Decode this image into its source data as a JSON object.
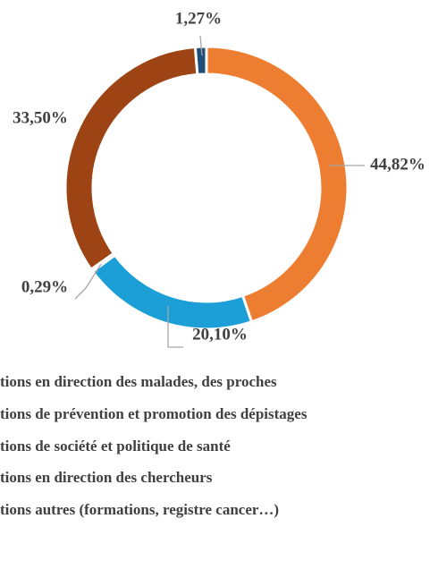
{
  "chart_data": {
    "type": "donut",
    "categories": [
      "tions en direction des malades, des proches",
      "tions de prévention et promotion des dépistages",
      "tions de société et politique de santé",
      "tions en direction des chercheurs",
      "tions autres (formations, registre cancer…)"
    ],
    "values": [
      44.82,
      20.1,
      0.29,
      33.5,
      1.27
    ],
    "value_labels": [
      "44,82%",
      "20,10%",
      "0,29%",
      "33,50%",
      "1,27%"
    ],
    "colors": [
      "#ED7D31",
      "#1B9FD6",
      "#A5A5A5",
      "#9E4313",
      "#1F4E79"
    ]
  }
}
